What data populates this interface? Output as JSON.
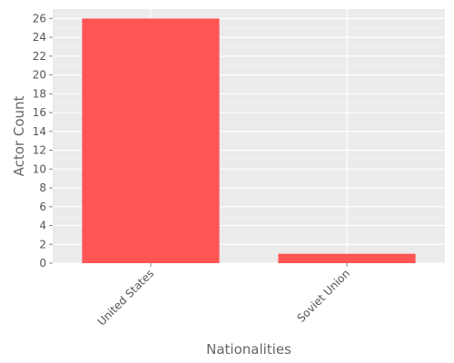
{
  "chart_data": {
    "type": "bar",
    "categories": [
      "United States",
      "Soviet Union"
    ],
    "values": [
      26,
      1
    ],
    "title": "",
    "xlabel": "Nationalities",
    "ylabel": "Actor Count",
    "ylim": [
      0,
      27
    ],
    "yticks": [
      0,
      2,
      4,
      6,
      8,
      10,
      12,
      14,
      16,
      18,
      20,
      22,
      24,
      26
    ],
    "grid": true,
    "bar_color": "#ff5555",
    "background_color": "#ebebeb",
    "grid_color": "#ffffff"
  }
}
